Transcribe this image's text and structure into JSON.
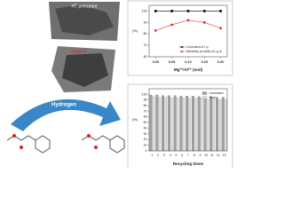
{
  "scheme": {
    "precursor": "HT precursor",
    "catalyst": "Catalyst",
    "arrow": "Hydrogen"
  },
  "chart_data": [
    {
      "type": "line",
      "xlabel": "Mg²⁺/Al³⁺ (mol)",
      "ylabel": "(%)",
      "x": [
        0,
        0.05,
        0.1,
        0.15,
        0.2
      ],
      "series": [
        {
          "name": "Conversion of L-p",
          "color": "#000000",
          "marker": "square",
          "values": [
            100,
            100,
            100,
            100,
            100
          ]
        },
        {
          "name": "Selectivity (or yield) of L-g at",
          "color": "#e0302a",
          "marker": "circle",
          "values": [
            83,
            88,
            92,
            90,
            85
          ]
        }
      ],
      "xlim": [
        -0.02,
        0.22
      ],
      "xticks": [
        {
          "value": 0,
          "label": "0.00"
        },
        0.05,
        {
          "value": 0.1,
          "label": "0.10"
        },
        0.15,
        {
          "value": 0.2,
          "label": "0.20"
        }
      ],
      "ylim": [
        60,
        105
      ],
      "yticks": [
        60,
        70,
        80,
        90,
        100
      ],
      "legend": "lower right"
    },
    {
      "type": "bar",
      "xlabel": "Recycling times",
      "ylabel": "(%)",
      "categories": [
        "1",
        "2",
        "3",
        "4",
        "5",
        "6",
        "7",
        "8",
        "9",
        "10",
        "11",
        "12",
        "13"
      ],
      "series": [
        {
          "name": "Conversion",
          "color": "#a0a0a0",
          "values": [
            99,
            99,
            98,
            98,
            98,
            97,
            97,
            97,
            96,
            96,
            96,
            95,
            95
          ]
        },
        {
          "name": "Yield",
          "color": "#dcdcdc",
          "values": [
            96,
            95,
            95,
            94,
            94,
            94,
            93,
            93,
            93,
            92,
            92,
            91,
            91
          ]
        }
      ],
      "ylim": [
        0,
        110
      ],
      "yticks": [
        0,
        10,
        20,
        30,
        40,
        50,
        60,
        70,
        80,
        90,
        100
      ],
      "legend": "upper right"
    }
  ]
}
